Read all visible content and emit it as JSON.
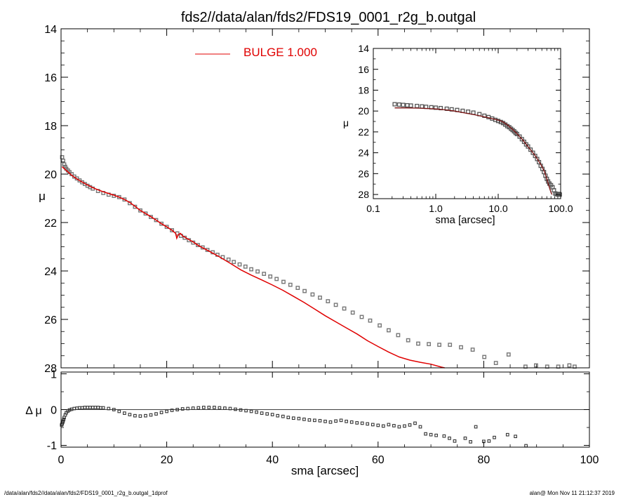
{
  "title": "fds2//data/alan/fds2/FDS19_0001_r2g_b.outgal",
  "footer": {
    "left": "/data/alan/fds2//data/alan/fds2/FDS19_0001_r2g_b.outgal_1dprof",
    "right": "alan@  Mon Nov 11 21:12:37 2019"
  },
  "legend": {
    "label": "BULGE  1.000",
    "color": "#e00000"
  },
  "colors": {
    "data": "#777777",
    "model": "#e00000",
    "inset_model": "#7a1010",
    "frame": "#000000"
  },
  "chart_data": [
    {
      "id": "main",
      "type": "scatter",
      "title": "fds2//data/alan/fds2/FDS19_0001_r2g_b.outgal",
      "xlabel": "",
      "ylabel": "μ",
      "xlim": [
        0,
        100
      ],
      "ylim": [
        14,
        28
      ],
      "y_inverted": true,
      "x_ticks": [
        0,
        20,
        40,
        60,
        80,
        100
      ],
      "y_ticks": [
        14,
        16,
        18,
        20,
        22,
        24,
        26,
        28
      ],
      "grid": false,
      "legend_position": "top-center",
      "series": [
        {
          "name": "data",
          "kind": "points",
          "x": [
            0.2,
            0.4,
            0.6,
            0.8,
            1.0,
            1.3,
            1.6,
            2.0,
            2.5,
            3.0,
            3.5,
            4.0,
            4.5,
            5.0,
            5.5,
            6.0,
            7.0,
            8.0,
            9.0,
            10.0,
            11.0,
            12.0,
            13.0,
            14.0,
            15.0,
            16.0,
            17.0,
            18.0,
            19.0,
            20.0,
            21.0,
            22.0,
            22.7,
            23.4,
            24.2,
            25.0,
            25.9,
            26.8,
            27.7,
            28.7,
            29.6,
            30.6,
            31.7,
            32.7,
            33.8,
            34.9,
            36.0,
            37.2,
            38.4,
            39.6,
            40.8,
            42.1,
            43.4,
            44.8,
            46.1,
            47.6,
            49.0,
            50.5,
            52.0,
            53.6,
            55.2,
            56.9,
            58.5,
            60.3,
            62.0,
            63.8,
            65.7,
            67.6,
            69.6,
            71.6,
            73.6,
            75.7,
            77.9,
            80.1,
            82.3,
            84.7,
            87.9,
            89.9,
            92.0,
            94.1,
            96.2,
            97.2
          ],
          "y": [
            19.3,
            19.45,
            19.6,
            19.7,
            19.78,
            19.85,
            19.92,
            20.0,
            20.1,
            20.18,
            20.26,
            20.34,
            20.41,
            20.48,
            20.54,
            20.6,
            20.7,
            20.78,
            20.85,
            20.9,
            20.95,
            21.05,
            21.2,
            21.35,
            21.5,
            21.63,
            21.77,
            21.9,
            22.05,
            22.18,
            22.32,
            22.45,
            22.55,
            22.63,
            22.73,
            22.83,
            22.93,
            23.03,
            23.13,
            23.23,
            23.33,
            23.43,
            23.53,
            23.63,
            23.73,
            23.82,
            23.93,
            24.02,
            24.12,
            24.23,
            24.33,
            24.45,
            24.57,
            24.7,
            24.83,
            24.97,
            25.1,
            25.25,
            25.4,
            25.55,
            25.72,
            25.9,
            26.05,
            26.25,
            26.45,
            26.65,
            26.86,
            27.0,
            27.02,
            27.05,
            27.05,
            27.15,
            27.25,
            27.55,
            27.8,
            27.45,
            27.95,
            27.9,
            27.95,
            27.95,
            27.9,
            27.95
          ]
        },
        {
          "name": "BULGE  1.000",
          "kind": "line",
          "x": [
            0.2,
            1,
            2,
            3,
            4,
            5,
            6,
            7,
            8,
            9,
            10,
            11,
            12,
            13,
            14,
            15,
            16,
            17,
            18,
            19,
            20,
            21,
            21.7,
            21.9,
            22.2,
            22.6,
            23,
            24,
            25,
            26,
            28,
            30,
            32,
            34,
            36,
            38,
            40,
            42,
            44,
            46,
            48,
            50,
            52,
            54,
            56,
            58,
            60,
            62,
            64,
            66,
            68,
            70,
            72,
            72.6
          ],
          "y": [
            19.7,
            19.85,
            20.05,
            20.2,
            20.33,
            20.45,
            20.56,
            20.65,
            20.73,
            20.8,
            20.87,
            20.95,
            21.05,
            21.17,
            21.33,
            21.5,
            21.63,
            21.76,
            21.9,
            22.05,
            22.18,
            22.32,
            22.45,
            22.65,
            22.5,
            22.45,
            22.55,
            22.68,
            22.8,
            22.95,
            23.18,
            23.42,
            23.68,
            23.95,
            24.17,
            24.37,
            24.58,
            24.8,
            25.05,
            25.3,
            25.57,
            25.85,
            26.1,
            26.35,
            26.6,
            26.88,
            27.12,
            27.35,
            27.55,
            27.68,
            27.77,
            27.85,
            27.97,
            28.0
          ]
        }
      ]
    },
    {
      "id": "residual",
      "type": "scatter",
      "xlabel": "sma [arcsec]",
      "ylabel": "Δ μ",
      "xlim": [
        0,
        100
      ],
      "ylim": [
        -1.05,
        1.05
      ],
      "x_ticks": [
        0,
        20,
        40,
        60,
        80,
        100
      ],
      "y_ticks": [
        -1,
        0,
        1
      ],
      "zero_line": true,
      "grid": false,
      "series": [
        {
          "name": "residual",
          "kind": "points",
          "x": [
            0.1,
            0.2,
            0.3,
            0.4,
            0.5,
            0.6,
            0.8,
            1.0,
            1.3,
            1.6,
            2.0,
            2.5,
            3.0,
            3.5,
            4.0,
            4.5,
            5.0,
            5.5,
            6.0,
            6.5,
            7.0,
            7.5,
            8.0,
            9.0,
            10.0,
            11.0,
            12.0,
            13.0,
            14.0,
            15.0,
            16.0,
            17.0,
            18.0,
            19.0,
            20.0,
            21.0,
            22.0,
            23.0,
            24.0,
            25.0,
            26.0,
            27.0,
            28.0,
            29.0,
            30.0,
            31.0,
            32.0,
            33.0,
            34.0,
            35.0,
            36.0,
            37.0,
            38.0,
            39.0,
            40.0,
            41.0,
            42.0,
            43.0,
            44.0,
            45.0,
            46.0,
            47.0,
            48.0,
            49.0,
            50.0,
            51.0,
            52.0,
            53.0,
            54.0,
            55.0,
            56.0,
            57.0,
            58.0,
            59.0,
            60.0,
            61.0,
            62.0,
            63.0,
            64.0,
            65.0,
            66.0,
            67.0,
            68.0,
            69.0,
            70.0,
            71.0,
            72.5,
            73.5,
            74.5,
            76.5,
            77.5,
            78.5,
            80.0,
            81.0,
            82.0,
            84.5,
            86.0,
            88.0
          ],
          "y": [
            -0.43,
            -0.4,
            -0.36,
            -0.32,
            -0.27,
            -0.22,
            -0.15,
            -0.09,
            -0.04,
            -0.01,
            0.01,
            0.03,
            0.04,
            0.05,
            0.05,
            0.06,
            0.06,
            0.06,
            0.06,
            0.06,
            0.06,
            0.05,
            0.05,
            0.03,
            0.0,
            -0.05,
            -0.1,
            -0.14,
            -0.17,
            -0.18,
            -0.17,
            -0.15,
            -0.12,
            -0.08,
            -0.05,
            -0.02,
            0.0,
            0.02,
            0.03,
            0.04,
            0.05,
            0.06,
            0.06,
            0.06,
            0.05,
            0.04,
            0.03,
            0.01,
            -0.01,
            -0.03,
            -0.05,
            -0.07,
            -0.1,
            -0.12,
            -0.14,
            -0.17,
            -0.19,
            -0.22,
            -0.24,
            -0.25,
            -0.27,
            -0.29,
            -0.3,
            -0.31,
            -0.33,
            -0.35,
            -0.32,
            -0.3,
            -0.33,
            -0.35,
            -0.37,
            -0.38,
            -0.4,
            -0.42,
            -0.44,
            -0.46,
            -0.42,
            -0.45,
            -0.48,
            -0.46,
            -0.43,
            -0.38,
            -0.48,
            -0.68,
            -0.7,
            -0.72,
            -0.74,
            -0.8,
            -0.88,
            -0.8,
            -0.9,
            -0.48,
            -0.89,
            -0.88,
            -0.78,
            -0.7,
            -0.75,
            -1.01
          ]
        }
      ]
    },
    {
      "id": "inset",
      "type": "scatter",
      "xlabel": "sma [arcsec]",
      "ylabel": "μ",
      "x_scale": "log",
      "xlim": [
        0.1,
        100.0
      ],
      "ylim": [
        14,
        28.4
      ],
      "y_inverted": true,
      "x_ticks": [
        0.1,
        1.0,
        10.0,
        100.0
      ],
      "x_tick_labels": [
        "0.1",
        "1.0",
        "10.0",
        "100.0"
      ],
      "y_ticks": [
        14,
        16,
        18,
        20,
        22,
        24,
        26,
        28
      ],
      "grid": false,
      "series": [
        {
          "name": "data",
          "kind": "points",
          "x": [
            0.22,
            0.26,
            0.3,
            0.35,
            0.4,
            0.5,
            0.6,
            0.7,
            0.85,
            1.0,
            1.2,
            1.5,
            1.8,
            2.2,
            2.7,
            3.3,
            4.0,
            5.0,
            6.0,
            7.0,
            8.0,
            9.0,
            10.0,
            11.0,
            12.0,
            13.0,
            14.0,
            15.0,
            16.0,
            17.0,
            18.0,
            19.0,
            20.0,
            22.0,
            24.0,
            26.0,
            28.0,
            30.0,
            33.0,
            36.0,
            39.0,
            42.0,
            45.0,
            48.0,
            51.0,
            54.0,
            57.0,
            60.0,
            63.0,
            66.0,
            70.0,
            74.0,
            78.0,
            82.0,
            86.0,
            90.0,
            94.0,
            97.0
          ],
          "y": [
            19.35,
            19.38,
            19.42,
            19.45,
            19.48,
            19.52,
            19.56,
            19.6,
            19.64,
            19.68,
            19.72,
            19.78,
            19.84,
            19.9,
            19.98,
            20.06,
            20.16,
            20.3,
            20.45,
            20.58,
            20.72,
            20.85,
            20.95,
            21.05,
            21.15,
            21.3,
            21.45,
            21.55,
            21.7,
            21.82,
            21.95,
            22.1,
            22.2,
            22.45,
            22.7,
            22.95,
            23.2,
            23.4,
            23.7,
            24.0,
            24.3,
            24.6,
            24.9,
            25.25,
            25.55,
            25.85,
            26.2,
            26.5,
            26.75,
            26.95,
            27.1,
            27.3,
            27.6,
            27.9,
            27.95,
            28.0,
            27.95,
            28.0
          ]
        },
        {
          "name": "model",
          "kind": "line",
          "x": [
            0.22,
            0.3,
            0.5,
            0.7,
            1.0,
            1.5,
            2.0,
            3.0,
            4.0,
            5.0,
            6.0,
            7.0,
            8.0,
            9.0,
            10.0,
            11.0,
            12.0,
            14.0,
            16.0,
            18.0,
            20.0,
            25.0,
            30.0,
            35.0,
            40.0,
            45.0,
            50.0,
            55.0,
            60.0,
            65.0,
            70.0,
            72.6
          ],
          "y": [
            19.7,
            19.7,
            19.72,
            19.75,
            19.8,
            19.9,
            20.0,
            20.2,
            20.33,
            20.45,
            20.56,
            20.65,
            20.73,
            20.8,
            20.87,
            20.95,
            21.05,
            21.33,
            21.63,
            21.9,
            22.18,
            22.8,
            23.42,
            23.9,
            24.37,
            24.85,
            25.3,
            25.8,
            26.5,
            27.2,
            27.8,
            28.0
          ]
        }
      ]
    }
  ]
}
